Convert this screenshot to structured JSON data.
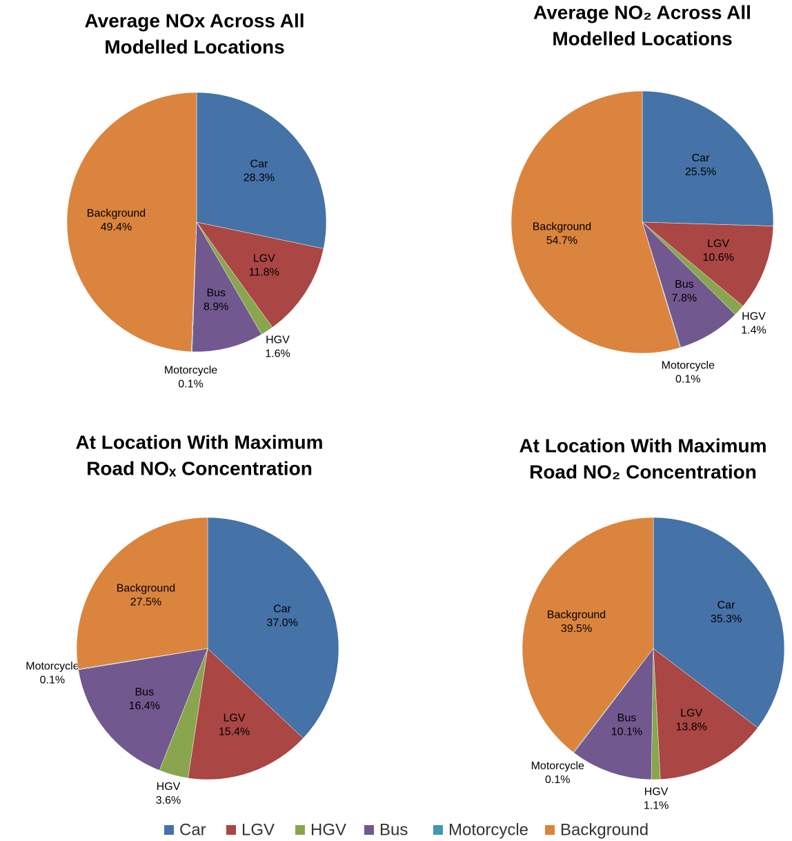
{
  "chart_data": [
    {
      "type": "pie",
      "title": [
        "Average NOx Across All",
        "Modelled Locations"
      ],
      "categories": [
        "Car",
        "LGV",
        "HGV",
        "Bus",
        "Motorcycle",
        "Background"
      ],
      "values": [
        28.3,
        11.8,
        1.6,
        8.9,
        0.1,
        49.4
      ],
      "value_labels": [
        "28.3%",
        "11.8%",
        "1.6%",
        "8.9%",
        "0.1%",
        "49.4%"
      ],
      "colors": [
        "#4572a7",
        "#aa4643",
        "#89a54e",
        "#71588f",
        "#4198af",
        "#db843d"
      ]
    },
    {
      "type": "pie",
      "title": [
        "Average NO₂ Across All",
        "Modelled Locations"
      ],
      "categories": [
        "Car",
        "LGV",
        "HGV",
        "Bus",
        "Motorcycle",
        "Background"
      ],
      "values": [
        25.5,
        10.6,
        1.4,
        7.8,
        0.1,
        54.7
      ],
      "value_labels": [
        "25.5%",
        "10.6%",
        "1.4%",
        "7.8%",
        "0.1%",
        "54.7%"
      ],
      "colors": [
        "#4572a7",
        "#aa4643",
        "#89a54e",
        "#71588f",
        "#4198af",
        "#db843d"
      ]
    },
    {
      "type": "pie",
      "title": [
        "At Location With Maximum",
        "Road NOₓ Concentration"
      ],
      "categories": [
        "Car",
        "LGV",
        "HGV",
        "Bus",
        "Motorcycle",
        "Background"
      ],
      "values": [
        37.0,
        15.4,
        3.6,
        16.4,
        0.1,
        27.5
      ],
      "value_labels": [
        "37.0%",
        "15.4%",
        "3.6%",
        "16.4%",
        "0.1%",
        "27.5%"
      ],
      "colors": [
        "#4572a7",
        "#aa4643",
        "#89a54e",
        "#71588f",
        "#4198af",
        "#db843d"
      ]
    },
    {
      "type": "pie",
      "title": [
        "At Location With Maximum",
        "Road NO₂ Concentration"
      ],
      "categories": [
        "Car",
        "LGV",
        "HGV",
        "Bus",
        "Motorcycle",
        "Background"
      ],
      "values": [
        35.3,
        13.8,
        1.1,
        10.1,
        0.1,
        39.5
      ],
      "value_labels": [
        "35.3%",
        "13.8%",
        "1.1%",
        "10.1%",
        "0.1%",
        "39.5%"
      ],
      "colors": [
        "#4572a7",
        "#aa4643",
        "#89a54e",
        "#71588f",
        "#4198af",
        "#db843d"
      ]
    }
  ]
}
